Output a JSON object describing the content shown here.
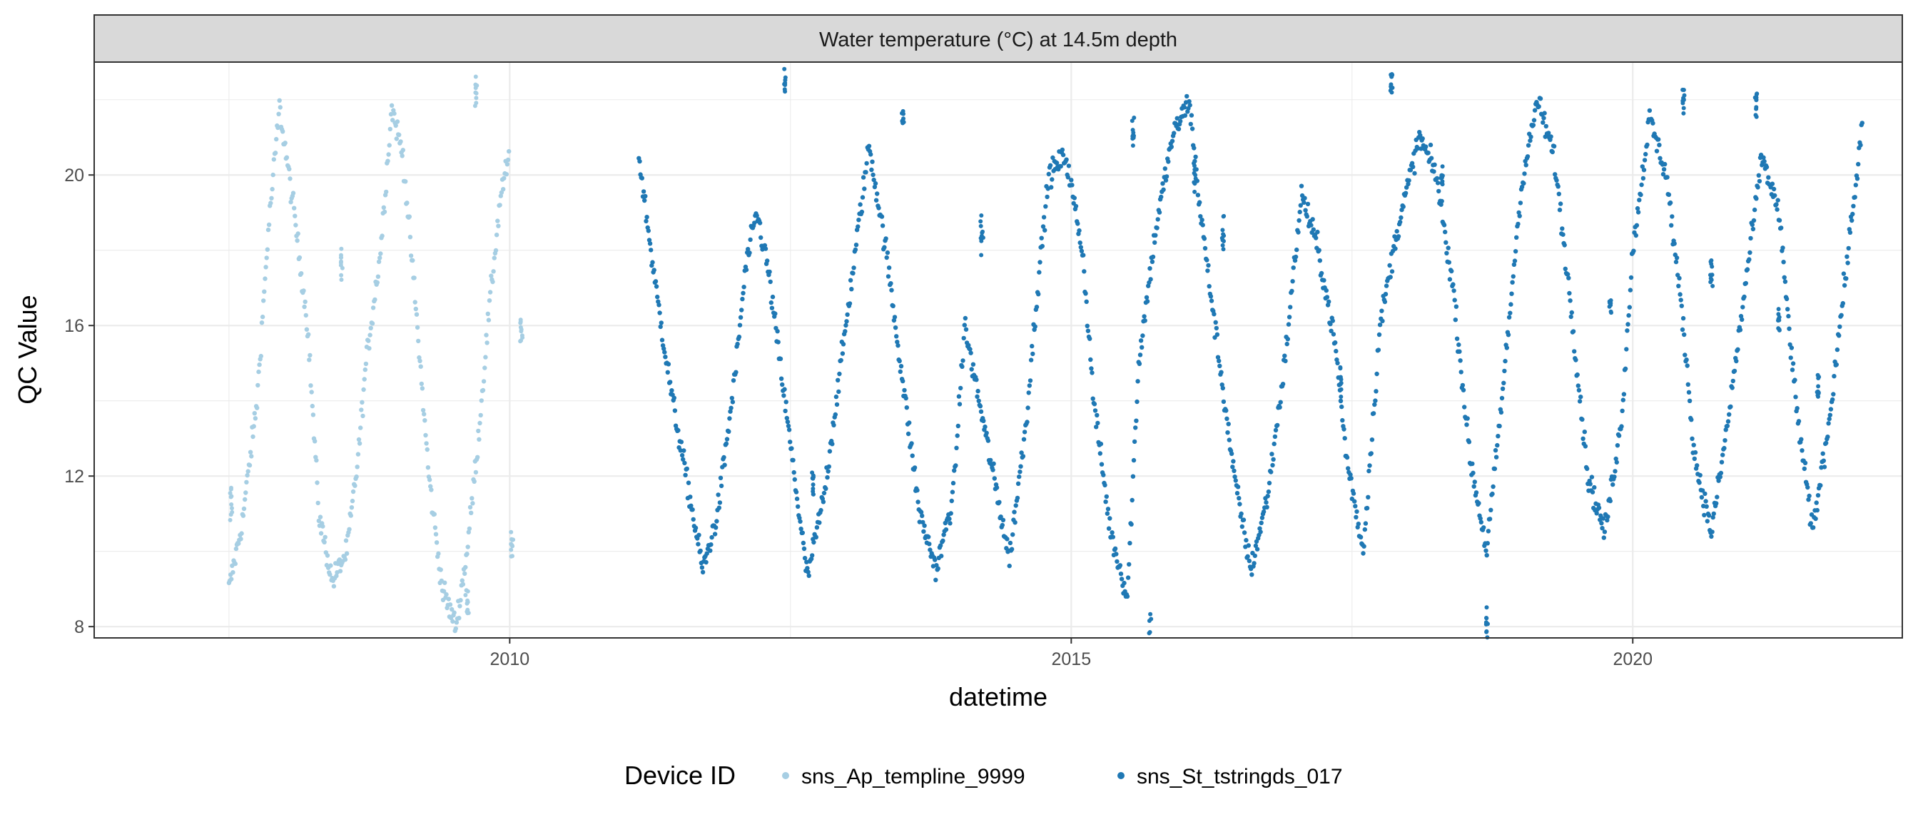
{
  "chart_data": {
    "type": "scatter",
    "title": "Water temperature (°C) at 14.5m depth",
    "xlabel": "datetime",
    "ylabel": "QC Value",
    "xlim": [
      2006.3,
      2022.4
    ],
    "ylim": [
      7.7,
      23.0
    ],
    "x_ticks": [
      2010,
      2015,
      2020
    ],
    "y_ticks": [
      8,
      12,
      16,
      20
    ],
    "grid": true,
    "legend": {
      "title": "Device ID",
      "position": "bottom"
    },
    "series": [
      {
        "name": "sns_Ap_templine_9999",
        "color": "#a6cee3",
        "x": [
          2007.5,
          2007.62,
          2007.75,
          2007.85,
          2007.95,
          2008.08,
          2008.2,
          2008.3,
          2008.42,
          2008.55,
          2008.65,
          2008.72,
          2008.85,
          2008.95,
          2009.05,
          2009.15,
          2009.28,
          2009.4,
          2009.52,
          2009.62,
          2009.72,
          2009.82,
          2009.92,
          2010.0
        ],
        "y": [
          9.0,
          10.8,
          14.0,
          18.5,
          21.8,
          19.0,
          16.0,
          11.0,
          9.2,
          10.0,
          12.5,
          15.0,
          18.0,
          21.8,
          20.5,
          17.0,
          12.0,
          9.0,
          8.0,
          10.0,
          13.0,
          16.5,
          19.5,
          20.5
        ],
        "extra_x": [
          2007.52,
          2008.5,
          2009.62,
          2009.7,
          2010.02,
          2010.1
        ],
        "extra_y": [
          11.2,
          17.8,
          8.7,
          22.2,
          10.2,
          15.8
        ]
      },
      {
        "name": "sns_St_tstringds_017",
        "color": "#1f78b4",
        "x": [
          2011.15,
          2011.3,
          2011.45,
          2011.6,
          2011.72,
          2011.85,
          2012.0,
          2012.1,
          2012.2,
          2012.3,
          2012.65,
          2012.8,
          2012.95,
          2013.1,
          2013.2,
          2013.35,
          2013.5,
          2013.65,
          2013.8,
          2013.95,
          2014.05,
          2014.45,
          2014.6,
          2014.7,
          2014.8,
          2014.95,
          2015.1,
          2015.2,
          2015.35,
          2015.5,
          2015.6,
          2015.75,
          2015.9,
          2016.05,
          2016.15,
          2016.3,
          2016.45,
          2016.6,
          2016.75,
          2016.9,
          2017.05,
          2017.2,
          2017.35,
          2017.45,
          2017.6,
          2017.75,
          2017.9,
          2018.1,
          2018.25,
          2018.4,
          2018.55,
          2018.7,
          2018.85,
          2019.0,
          2019.15,
          2019.3,
          2019.45,
          2019.6,
          2019.75,
          2019.9,
          2020.0,
          2020.15,
          2020.3,
          2020.45,
          2020.55,
          2020.7,
          2020.85,
          2021.0,
          2021.15,
          2021.3,
          2021.45,
          2021.6,
          2021.75,
          2021.9,
          2022.05
        ],
        "y": [
          20.5,
          17.0,
          14.0,
          11.5,
          9.5,
          11.0,
          14.5,
          17.5,
          19.0,
          17.5,
          9.3,
          11.5,
          15.0,
          18.5,
          20.8,
          18.0,
          14.5,
          11.0,
          9.5,
          11.5,
          16.0,
          9.8,
          13.5,
          17.0,
          20.0,
          20.5,
          18.0,
          14.0,
          10.5,
          8.8,
          15.0,
          18.5,
          21.0,
          22.0,
          19.0,
          15.5,
          12.0,
          9.5,
          11.5,
          15.0,
          19.5,
          18.0,
          15.5,
          12.5,
          10.0,
          16.0,
          18.5,
          21.0,
          20.0,
          17.0,
          12.5,
          10.0,
          14.5,
          19.5,
          22.0,
          20.5,
          16.5,
          12.0,
          10.5,
          13.5,
          18.0,
          21.5,
          20.0,
          16.0,
          12.5,
          10.5,
          13.5,
          17.0,
          20.5,
          19.0,
          14.0,
          10.5,
          13.5,
          17.5,
          21.5
        ],
        "extra_x": [
          2012.45,
          2012.7,
          2013.5,
          2014.2,
          2015.55,
          2015.7,
          2016.1,
          2016.35,
          2017.4,
          2017.85,
          2018.3,
          2018.7,
          2019.8,
          2020.45,
          2020.7,
          2021.1,
          2021.3,
          2021.65
        ],
        "extra_y": [
          22.3,
          11.8,
          21.5,
          18.5,
          21.2,
          8.0,
          20.0,
          18.5,
          14.5,
          22.5,
          20.0,
          8.0,
          16.5,
          22.0,
          17.5,
          22.0,
          16.0,
          14.3
        ]
      }
    ]
  }
}
